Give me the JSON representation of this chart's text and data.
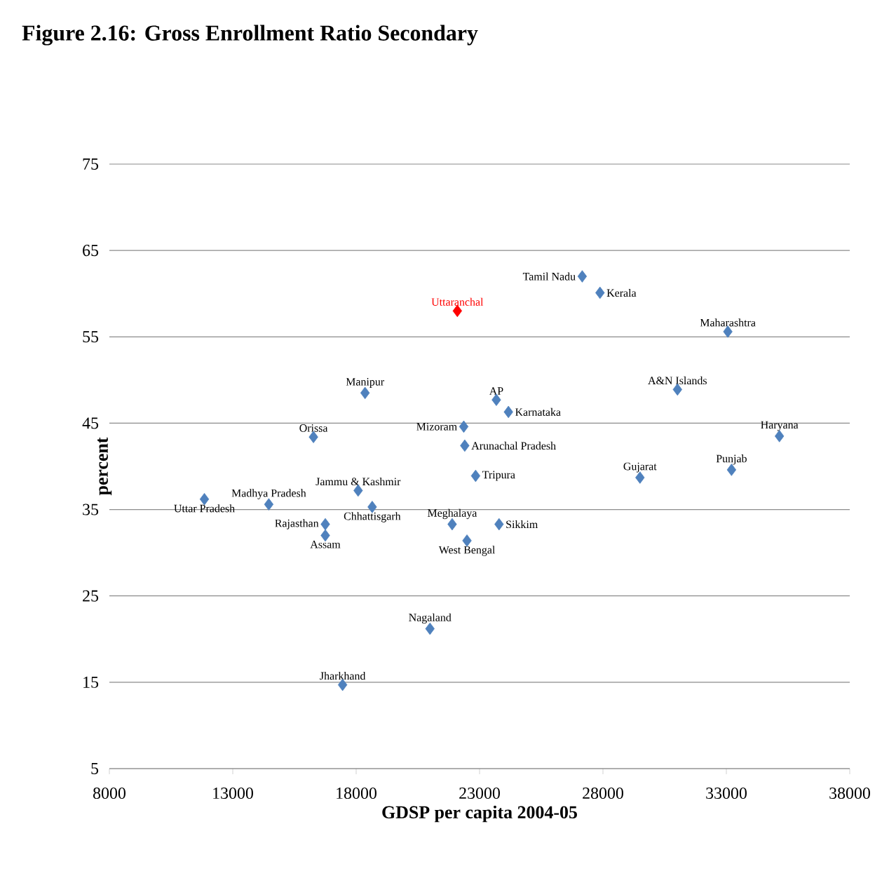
{
  "chart_data": {
    "type": "scatter",
    "title": "Figure 2.16:  Gross Enrollment Ratio Secondary",
    "xlabel": "GDSP per capita 2004-05",
    "ylabel": "percent",
    "xlim": [
      8000,
      38000
    ],
    "xticks": [
      8000,
      13000,
      18000,
      23000,
      28000,
      33000,
      38000
    ],
    "ylim": [
      5,
      75
    ],
    "yticks": [
      5,
      15,
      25,
      35,
      45,
      55,
      65,
      75
    ],
    "grid": "y",
    "marker": "diamond",
    "series": [
      {
        "name": "Uttar Pradesh",
        "color": "#4f81bd",
        "x": [
          11850
        ],
        "values": [
          36.2
        ]
      },
      {
        "name": "Madhya Pradesh",
        "color": "#4f81bd",
        "x": [
          14460
        ],
        "values": [
          35.6
        ]
      },
      {
        "name": "Orissa",
        "color": "#4f81bd",
        "x": [
          16270
        ],
        "values": [
          43.4
        ]
      },
      {
        "name": "Rajasthan",
        "color": "#4f81bd",
        "x": [
          16750
        ],
        "values": [
          33.3
        ]
      },
      {
        "name": "Assam",
        "color": "#4f81bd",
        "x": [
          16750
        ],
        "values": [
          32.0
        ]
      },
      {
        "name": "Jammu & Kashmir",
        "color": "#4f81bd",
        "x": [
          18080
        ],
        "values": [
          37.2
        ]
      },
      {
        "name": "Chhattisgarh",
        "color": "#4f81bd",
        "x": [
          18650
        ],
        "values": [
          35.3
        ]
      },
      {
        "name": "Manipur",
        "color": "#4f81bd",
        "x": [
          18360
        ],
        "values": [
          48.5
        ]
      },
      {
        "name": "Jharkhand",
        "color": "#4f81bd",
        "x": [
          17450
        ],
        "values": [
          14.7
        ]
      },
      {
        "name": "Nagaland",
        "color": "#4f81bd",
        "x": [
          20990
        ],
        "values": [
          21.2
        ]
      },
      {
        "name": "Uttaranchal",
        "color": "#ff0000",
        "x": [
          22100
        ],
        "values": [
          58.0
        ]
      },
      {
        "name": "Mizoram",
        "color": "#4f81bd",
        "x": [
          22360
        ],
        "values": [
          44.6
        ]
      },
      {
        "name": "Arunachal Pradesh",
        "color": "#4f81bd",
        "x": [
          22400
        ],
        "values": [
          42.4
        ]
      },
      {
        "name": "AP",
        "color": "#4f81bd",
        "x": [
          23680
        ],
        "values": [
          47.7
        ]
      },
      {
        "name": "Karnataka",
        "color": "#4f81bd",
        "x": [
          24170
        ],
        "values": [
          46.3
        ]
      },
      {
        "name": "Tripura",
        "color": "#4f81bd",
        "x": [
          22840
        ],
        "values": [
          38.9
        ]
      },
      {
        "name": "Meghalaya",
        "color": "#4f81bd",
        "x": [
          21890
        ],
        "values": [
          33.3
        ]
      },
      {
        "name": "West Bengal",
        "color": "#4f81bd",
        "x": [
          22490
        ],
        "values": [
          31.4
        ]
      },
      {
        "name": "Sikkim",
        "color": "#4f81bd",
        "x": [
          23790
        ],
        "values": [
          33.3
        ]
      },
      {
        "name": "Tamil Nadu",
        "color": "#4f81bd",
        "x": [
          27160
        ],
        "values": [
          62.0
        ]
      },
      {
        "name": "Kerala",
        "color": "#4f81bd",
        "x": [
          27880
        ],
        "values": [
          60.1
        ]
      },
      {
        "name": "Gujarat",
        "color": "#4f81bd",
        "x": [
          29500
        ],
        "values": [
          38.7
        ]
      },
      {
        "name": "A&N Islands",
        "color": "#4f81bd",
        "x": [
          31020
        ],
        "values": [
          48.9
        ]
      },
      {
        "name": "Maharashtra",
        "color": "#4f81bd",
        "x": [
          33060
        ],
        "values": [
          55.6
        ]
      },
      {
        "name": "Punjab",
        "color": "#4f81bd",
        "x": [
          33210
        ],
        "values": [
          39.6
        ]
      },
      {
        "name": "Haryana",
        "color": "#4f81bd",
        "x": [
          35150
        ],
        "values": [
          43.5
        ]
      }
    ]
  }
}
